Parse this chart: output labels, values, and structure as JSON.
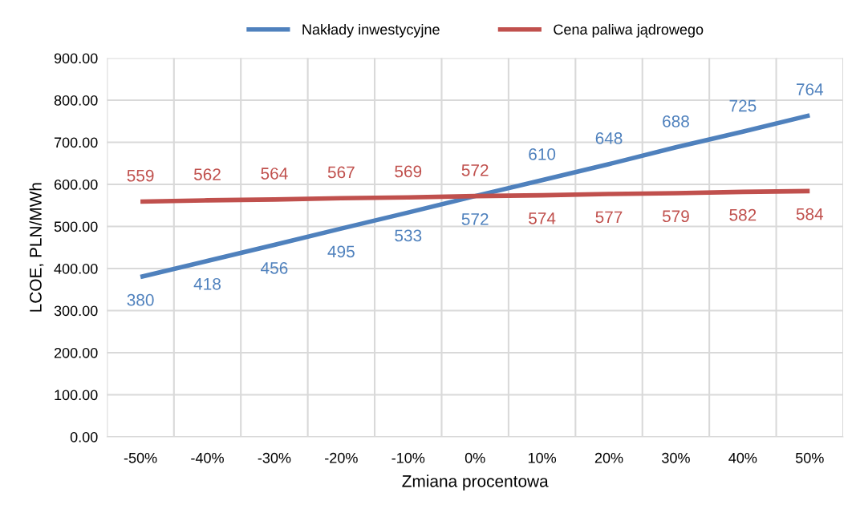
{
  "chart_data": {
    "type": "line",
    "xlabel": "Zmiana procentowa",
    "ylabel": "LCOE, PLN/MWh",
    "categories": [
      "-50%",
      "-40%",
      "-30%",
      "-20%",
      "-10%",
      "0%",
      "10%",
      "20%",
      "30%",
      "40%",
      "50%"
    ],
    "series": [
      {
        "name": "Nakłady inwestycyjne",
        "color": "#4f81bd",
        "values": [
          380,
          418,
          456,
          495,
          533,
          572,
          610,
          648,
          688,
          725,
          764
        ]
      },
      {
        "name": "Cena paliwa jądrowego",
        "color": "#c0504d",
        "values": [
          559,
          562,
          564,
          567,
          569,
          572,
          574,
          577,
          579,
          582,
          584
        ]
      }
    ],
    "ylim": [
      0,
      900
    ],
    "yticks": [
      {
        "value": 0,
        "label": "0.00"
      },
      {
        "value": 100,
        "label": "100.00"
      },
      {
        "value": 200,
        "label": "200.00"
      },
      {
        "value": 300,
        "label": "300.00"
      },
      {
        "value": 400,
        "label": "400.00"
      },
      {
        "value": 500,
        "label": "500.00"
      },
      {
        "value": 600,
        "label": "600.00"
      },
      {
        "value": 700,
        "label": "700.00"
      },
      {
        "value": 800,
        "label": "800.00"
      },
      {
        "value": 900,
        "label": "900.00"
      }
    ],
    "grid": true,
    "legend": "top",
    "data_labels": true,
    "marker": "none",
    "line_style": "solid"
  }
}
